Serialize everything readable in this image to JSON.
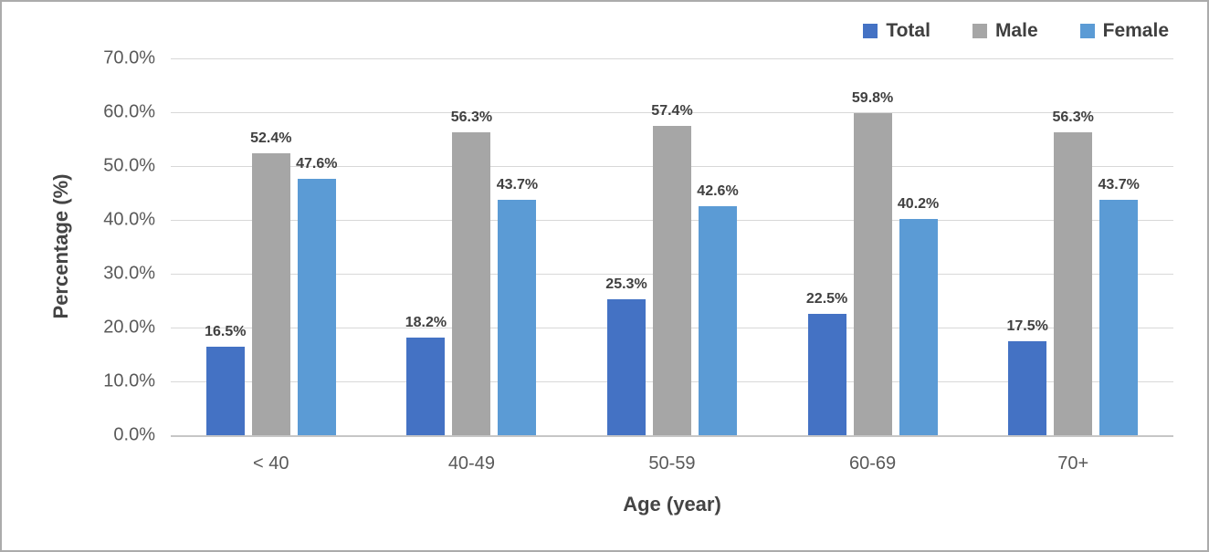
{
  "chart_data": {
    "type": "bar",
    "title": "",
    "xlabel": "Age (year)",
    "ylabel": "Percentage (%)",
    "categories": [
      "< 40",
      "40-49",
      "50-59",
      "60-69",
      "70+"
    ],
    "series": [
      {
        "name": "Total",
        "color": "#4472c4",
        "values": [
          16.5,
          18.2,
          25.3,
          22.5,
          17.5
        ]
      },
      {
        "name": "Male",
        "color": "#a6a6a6",
        "values": [
          52.4,
          56.3,
          57.4,
          59.8,
          56.3
        ]
      },
      {
        "name": "Female",
        "color": "#5b9bd5",
        "values": [
          47.6,
          43.7,
          42.6,
          40.2,
          43.7
        ]
      }
    ],
    "data_labels": [
      [
        "16.5%",
        "18.2%",
        "25.3%",
        "22.5%",
        "17.5%"
      ],
      [
        "52.4%",
        "56.3%",
        "57.4%",
        "59.8%",
        "56.3%"
      ],
      [
        "47.6%",
        "43.7%",
        "42.6%",
        "40.2%",
        "43.7%"
      ]
    ],
    "y_ticks": [
      "70.0%",
      "60.0%",
      "50.0%",
      "40.0%",
      "30.0%",
      "20.0%",
      "10.0%",
      "0.0%"
    ],
    "ylim": [
      0,
      70
    ],
    "grid": true,
    "legend_position": "top-right",
    "colors": {
      "gridline": "#d8d8d8",
      "axis_line": "#c6c6c6",
      "tick_text": "#595959",
      "label_text": "#404040",
      "frame_border": "#ababab"
    }
  }
}
